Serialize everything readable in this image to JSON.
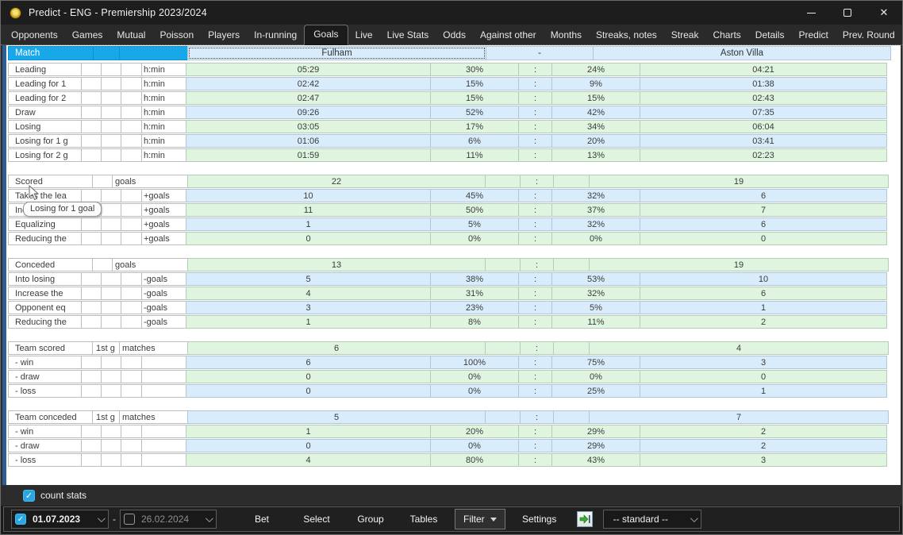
{
  "window": {
    "title": "Predict - ENG - Premiership 2023/2024"
  },
  "titlebar": {
    "close_glyph": "✕"
  },
  "tabs": {
    "selected": "Goals",
    "items": [
      "Opponents",
      "Games",
      "Mutual",
      "Poisson",
      "Players",
      "In-running",
      "Goals",
      "Live",
      "Live Stats",
      "Odds",
      "Against other",
      "Months",
      "Streaks, notes",
      "Streak",
      "Charts",
      "Details",
      "Predict",
      "Prev. Round",
      "Summary"
    ]
  },
  "colors": {
    "green_row": "#dff5e0",
    "blue_row": "#d9ecfb",
    "header_blue": "#18a7e8",
    "accent_strip": "#2d5f94",
    "checkbox_blue": "#2aa7e2"
  },
  "table": {
    "colon": ":",
    "header": {
      "col1": "Match",
      "home": "Fulham",
      "sep": "-",
      "away": "Aston Villa"
    },
    "sections": [
      {
        "rows": [
          {
            "kind": "n",
            "color": "g",
            "label": "Leading",
            "unit": "h:min",
            "home": "05:29",
            "hp": "30%",
            "ap": "24%",
            "away": "04:21"
          },
          {
            "kind": "n",
            "color": "b",
            "label": "Leading for 1 ",
            "unit": "h:min",
            "home": "02:42",
            "hp": "15%",
            "ap": "9%",
            "away": "01:38"
          },
          {
            "kind": "n",
            "color": "g",
            "label": "Leading for 2 ",
            "unit": "h:min",
            "home": "02:47",
            "hp": "15%",
            "ap": "15%",
            "away": "02:43"
          },
          {
            "kind": "n",
            "color": "b",
            "label": "Draw",
            "unit": "h:min",
            "home": "09:26",
            "hp": "52%",
            "ap": "42%",
            "away": "07:35"
          },
          {
            "kind": "n",
            "color": "g",
            "label": "Losing",
            "unit": "h:min",
            "home": "03:05",
            "hp": "17%",
            "ap": "34%",
            "away": "06:04"
          },
          {
            "kind": "n",
            "color": "b",
            "label": "Losing for 1 g",
            "unit": "h:min",
            "home": "01:06",
            "hp": "6%",
            "ap": "20%",
            "away": "03:41"
          },
          {
            "kind": "n",
            "color": "g",
            "label": "Losing for 2 g",
            "unit": "h:min",
            "home": "01:59",
            "hp": "11%",
            "ap": "13%",
            "away": "02:23"
          }
        ]
      },
      {
        "rows": [
          {
            "kind": "h",
            "color": "g",
            "label": "Scored",
            "small": "",
            "unit": "goals",
            "home": "22",
            "away": "19"
          },
          {
            "kind": "n",
            "color": "b",
            "label": "Takes the lea",
            "unit": "+goals",
            "home": "10",
            "hp": "45%",
            "ap": "32%",
            "away": "6"
          },
          {
            "kind": "n",
            "color": "g",
            "label": "Increasing th",
            "unit": "+goals",
            "home": "11",
            "hp": "50%",
            "ap": "37%",
            "away": "7"
          },
          {
            "kind": "n",
            "color": "b",
            "label": "Equalizing",
            "unit": "+goals",
            "home": "1",
            "hp": "5%",
            "ap": "32%",
            "away": "6"
          },
          {
            "kind": "n",
            "color": "g",
            "label": "Reducing the",
            "unit": "+goals",
            "home": "0",
            "hp": "0%",
            "ap": "0%",
            "away": "0"
          }
        ]
      },
      {
        "rows": [
          {
            "kind": "h",
            "color": "g",
            "label": "Conceded",
            "small": "",
            "unit": "goals",
            "home": "13",
            "away": "19"
          },
          {
            "kind": "n",
            "color": "b",
            "label": "Into losing",
            "unit": "-goals",
            "home": "5",
            "hp": "38%",
            "ap": "53%",
            "away": "10"
          },
          {
            "kind": "n",
            "color": "g",
            "label": "Increase the",
            "unit": "-goals",
            "home": "4",
            "hp": "31%",
            "ap": "32%",
            "away": "6"
          },
          {
            "kind": "n",
            "color": "b",
            "label": "Opponent eq",
            "unit": "-goals",
            "home": "3",
            "hp": "23%",
            "ap": "5%",
            "away": "1"
          },
          {
            "kind": "n",
            "color": "g",
            "label": "Reducing the",
            "unit": "-goals",
            "home": "1",
            "hp": "8%",
            "ap": "11%",
            "away": "2"
          }
        ]
      },
      {
        "rows": [
          {
            "kind": "t",
            "color": "g",
            "label": "Team scored",
            "small": "1st g",
            "unit": "matches",
            "home": "6",
            "away": "4"
          },
          {
            "kind": "n",
            "color": "b",
            "label": "- win",
            "unit": "",
            "home": "6",
            "hp": "100%",
            "ap": "75%",
            "away": "3"
          },
          {
            "kind": "n",
            "color": "g",
            "label": "- draw",
            "unit": "",
            "home": "0",
            "hp": "0%",
            "ap": "0%",
            "away": "0"
          },
          {
            "kind": "n",
            "color": "b",
            "label": "- loss",
            "unit": "",
            "home": "0",
            "hp": "0%",
            "ap": "25%",
            "away": "1"
          }
        ]
      },
      {
        "rows": [
          {
            "kind": "t",
            "color": "b",
            "label": "Team conceded",
            "small": "1st g",
            "unit": "matches",
            "home": "5",
            "away": "7"
          },
          {
            "kind": "n",
            "color": "g",
            "label": "- win",
            "unit": "",
            "home": "1",
            "hp": "20%",
            "ap": "29%",
            "away": "2"
          },
          {
            "kind": "n",
            "color": "b",
            "label": "- draw",
            "unit": "",
            "home": "0",
            "hp": "0%",
            "ap": "29%",
            "away": "2"
          },
          {
            "kind": "n",
            "color": "g",
            "label": "- loss",
            "unit": "",
            "home": "4",
            "hp": "80%",
            "ap": "43%",
            "away": "3"
          }
        ]
      }
    ]
  },
  "tooltip": {
    "text": "Losing for 1 goal"
  },
  "footer": {
    "count_stats": "count stats"
  },
  "toolbar": {
    "date_from": {
      "value": "01.07.2023",
      "checked": true
    },
    "dash": "-",
    "date_to": {
      "value": "26.02.2024",
      "checked": false
    },
    "bet": "Bet",
    "select": "Select",
    "group": "Group",
    "tables": "Tables",
    "filter": "Filter",
    "settings": "Settings",
    "preset": {
      "value": "-- standard --"
    }
  }
}
